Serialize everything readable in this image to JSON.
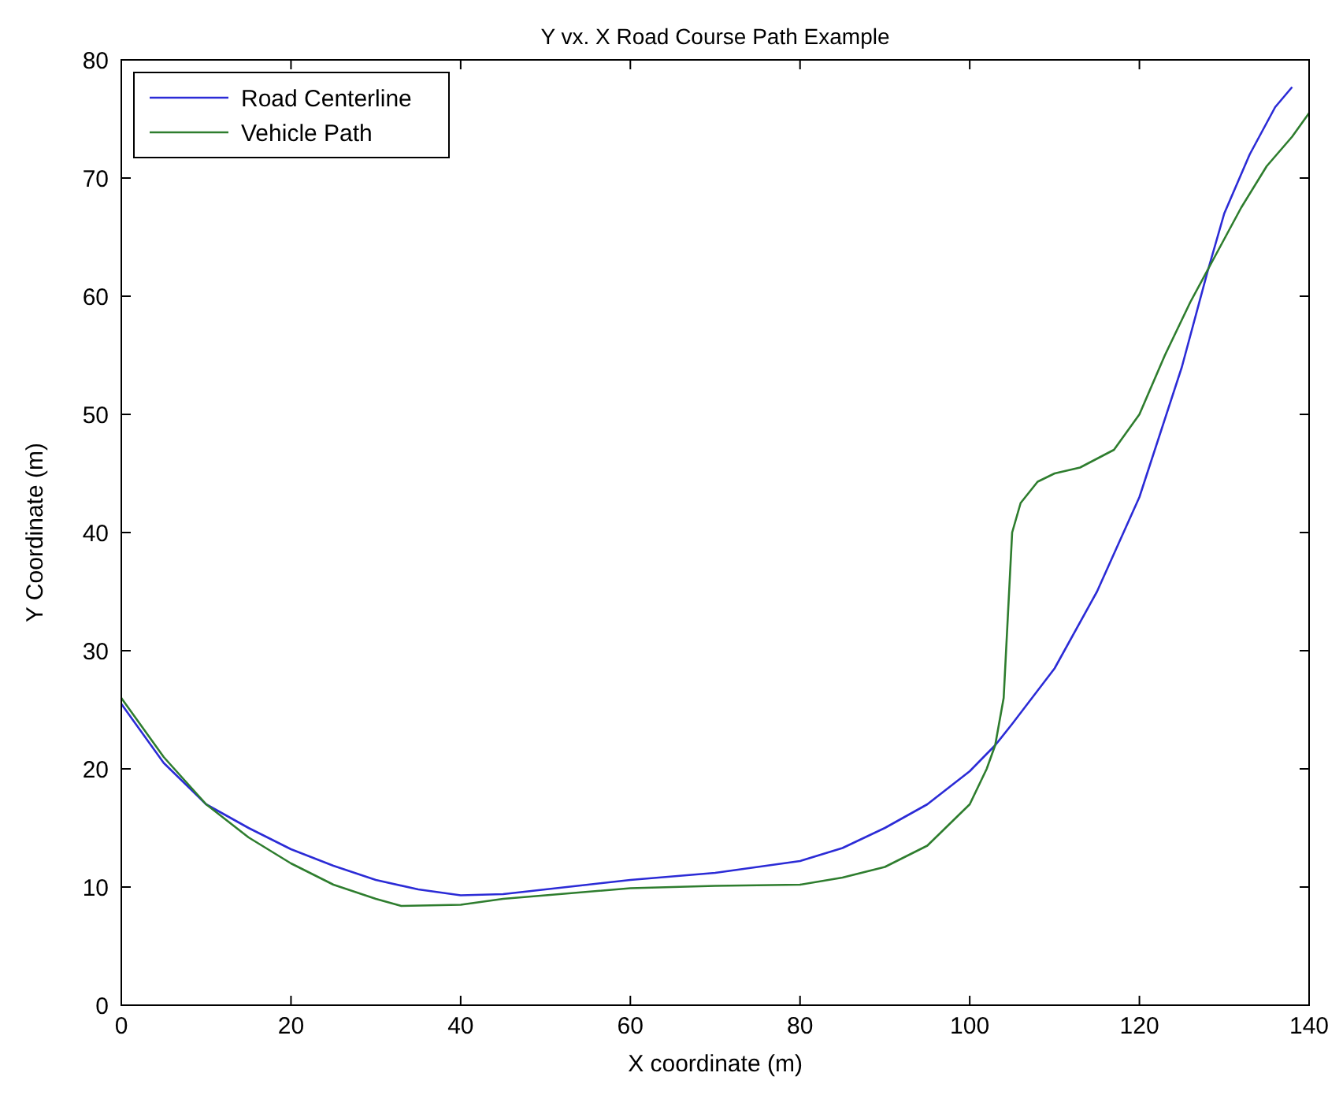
{
  "chart_data": {
    "type": "line",
    "title": "Y vx. X Road Course Path Example",
    "xlabel": "X coordinate (m)",
    "ylabel": "Y Coordinate (m)",
    "xlim": [
      0,
      140
    ],
    "xticks": [
      0,
      20,
      40,
      60,
      80,
      100,
      120,
      140
    ],
    "ylim": [
      0,
      80
    ],
    "yticks": [
      0,
      10,
      20,
      30,
      40,
      50,
      60,
      70,
      80
    ],
    "grid": false,
    "legend": "top left",
    "series": [
      {
        "name": "Road Centerline",
        "color": "#2b2bd6",
        "x": [
          0,
          5,
          10,
          15,
          20,
          25,
          30,
          35,
          40,
          45,
          50,
          55,
          60,
          70,
          80,
          85,
          90,
          95,
          100,
          103,
          105,
          110,
          115,
          120,
          125,
          128,
          130,
          133,
          136,
          138
        ],
        "values": [
          25.5,
          20.5,
          17,
          15,
          13.2,
          11.8,
          10.6,
          9.8,
          9.3,
          9.4,
          9.8,
          10.2,
          10.6,
          11.2,
          12.2,
          13.3,
          15,
          17,
          19.8,
          22,
          23.8,
          28.5,
          35,
          43,
          54,
          62,
          67,
          72,
          76,
          77.7
        ]
      },
      {
        "name": "Vehicle Path",
        "color": "#2e7d2e",
        "x": [
          0,
          5,
          10,
          15,
          20,
          25,
          30,
          33,
          40,
          45,
          50,
          60,
          70,
          80,
          85,
          90,
          95,
          100,
          102,
          103,
          104,
          104.5,
          105,
          106,
          108,
          110,
          113,
          117,
          120,
          123,
          126,
          129,
          132,
          135,
          138,
          140
        ],
        "values": [
          26,
          21,
          17,
          14.2,
          12,
          10.2,
          9,
          8.4,
          8.5,
          9,
          9.3,
          9.9,
          10.1,
          10.2,
          10.8,
          11.7,
          13.5,
          17,
          20,
          22,
          26,
          33,
          40,
          42.5,
          44.3,
          45,
          45.5,
          47,
          50,
          55,
          59.5,
          63.5,
          67.5,
          71,
          73.5,
          75.5
        ]
      }
    ]
  }
}
